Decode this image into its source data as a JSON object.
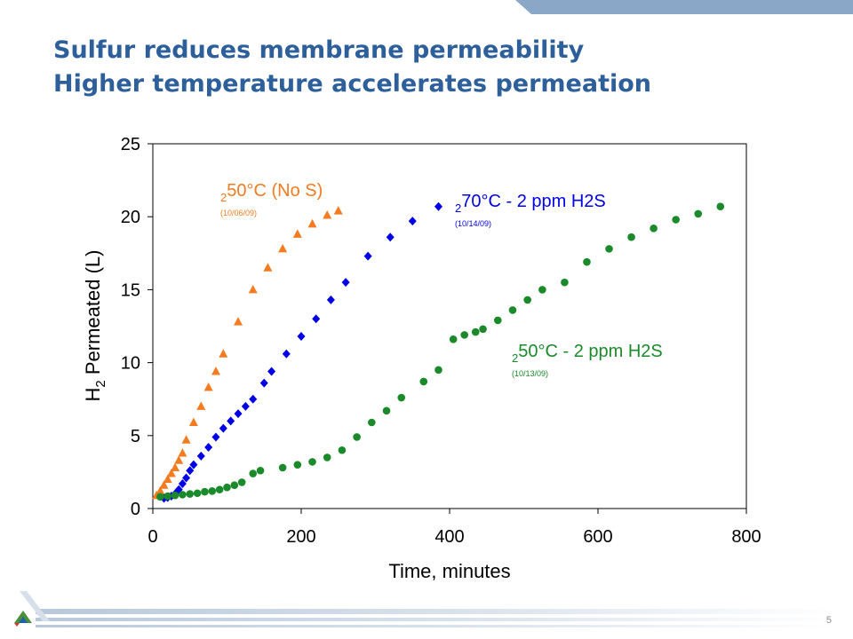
{
  "slide": {
    "title_line1": "Sulfur reduces membrane permeability",
    "title_line2": "Higher temperature accelerates permeation",
    "page_number": "5",
    "title_color": "#2d5f9a"
  },
  "chart_data": {
    "type": "scatter",
    "title": "",
    "xlabel": "Time, minutes",
    "ylabel": "H2 Permeated (L)",
    "xlim": [
      0,
      800
    ],
    "ylim": [
      0,
      25
    ],
    "xticks": [
      0,
      200,
      400,
      600,
      800
    ],
    "yticks": [
      0,
      5,
      10,
      15,
      20,
      25
    ],
    "grid": false,
    "legend": "inline annotations",
    "series": [
      {
        "name": "250°C (No S)",
        "date": "(10/06/09)",
        "color": "#f47b20",
        "marker": "triangle",
        "x": [
          5,
          10,
          15,
          20,
          25,
          30,
          35,
          40,
          45,
          55,
          65,
          75,
          85,
          95,
          115,
          135,
          155,
          175,
          195,
          215,
          235,
          250
        ],
        "y": [
          0.9,
          1.2,
          1.6,
          2.0,
          2.4,
          2.8,
          3.3,
          3.8,
          4.7,
          5.9,
          7.0,
          8.3,
          9.4,
          10.6,
          12.8,
          15.0,
          16.5,
          17.8,
          18.8,
          19.5,
          20.1,
          20.4
        ]
      },
      {
        "name": "270°C - 2 ppm H2S",
        "date": "(10/14/09)",
        "color": "#0000e6",
        "marker": "diamond",
        "x": [
          15,
          20,
          25,
          30,
          35,
          40,
          45,
          50,
          55,
          65,
          75,
          85,
          95,
          105,
          115,
          125,
          135,
          150,
          160,
          180,
          200,
          220,
          240,
          260,
          290,
          320,
          350,
          385
        ],
        "y": [
          0.7,
          0.75,
          0.85,
          1.0,
          1.3,
          1.7,
          2.1,
          2.6,
          3.0,
          3.6,
          4.2,
          4.9,
          5.5,
          6.0,
          6.5,
          7.0,
          7.5,
          8.6,
          9.4,
          10.6,
          11.8,
          13.0,
          14.3,
          15.5,
          17.3,
          18.6,
          19.7,
          20.7
        ]
      },
      {
        "name": "250°C  - 2 ppm H2S",
        "date": "(10/13/09)",
        "color": "#1a8a2a",
        "marker": "circle",
        "x": [
          10,
          20,
          30,
          40,
          50,
          60,
          70,
          80,
          90,
          100,
          110,
          120,
          135,
          145,
          175,
          195,
          215,
          235,
          255,
          275,
          295,
          315,
          335,
          365,
          385,
          405,
          420,
          435,
          445,
          465,
          485,
          505,
          525,
          555,
          585,
          615,
          645,
          675,
          705,
          735,
          765
        ],
        "y": [
          0.8,
          0.85,
          0.9,
          0.95,
          1.0,
          1.05,
          1.15,
          1.2,
          1.3,
          1.45,
          1.6,
          1.8,
          2.4,
          2.6,
          2.8,
          3.0,
          3.2,
          3.5,
          4.0,
          4.9,
          5.9,
          6.7,
          7.6,
          8.7,
          9.5,
          11.6,
          11.9,
          12.1,
          12.3,
          12.9,
          13.6,
          14.3,
          15.0,
          15.5,
          16.9,
          17.8,
          18.6,
          19.2,
          19.8,
          20.2,
          20.7
        ]
      }
    ]
  }
}
